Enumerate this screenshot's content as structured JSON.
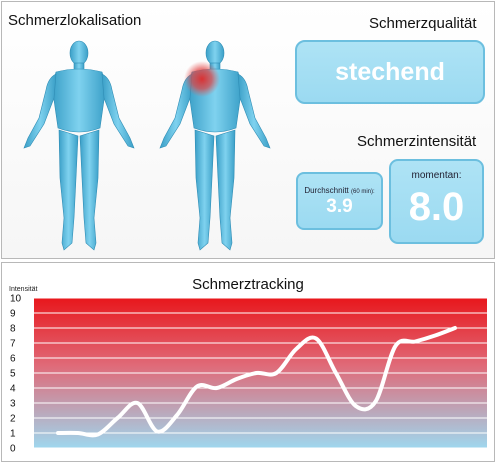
{
  "localization": {
    "title": "Schmerzlokalisation"
  },
  "quality": {
    "title": "Schmerzqualität",
    "value": "stechend"
  },
  "intensity": {
    "title": "Schmerzintensität",
    "average_label": "Durchschnitt",
    "average_label_small": "(60 min):",
    "average_value": "3.9",
    "current_label": "momentan:",
    "current_value": "8.0"
  },
  "tracking": {
    "title": "Schmerztracking"
  },
  "colors": {
    "figure": "#5fc0e3",
    "figure_shade": "#3a9fc7",
    "box_fill": "#a5dff3",
    "box_border": "#6cbfdf",
    "pain_spot": "#e02a2a",
    "chart_high": "#e8171c",
    "chart_low": "#9fd7ee",
    "line": "#ffffff"
  },
  "chart_data": {
    "type": "line",
    "title": "Schmerztracking",
    "ylabel": "Intensität",
    "xlabel": "",
    "ylim": [
      0,
      10
    ],
    "yticks": [
      "0",
      "1",
      "2",
      "3",
      "4",
      "5",
      "6",
      "7",
      "8",
      "9",
      "10"
    ],
    "grid": true,
    "series": [
      {
        "x": [
          0,
          1,
          2,
          3,
          4,
          5,
          6,
          7,
          8,
          9,
          10,
          11,
          12,
          13,
          14,
          15,
          16,
          17,
          18,
          19,
          20
        ],
        "values": [
          1.0,
          1.0,
          0.9,
          2.0,
          3.0,
          1.1,
          2.2,
          4.1,
          4.0,
          4.6,
          5.0,
          5.0,
          6.6,
          7.3,
          5.0,
          2.8,
          3.1,
          6.8,
          7.1,
          7.5,
          8.0
        ]
      }
    ]
  }
}
